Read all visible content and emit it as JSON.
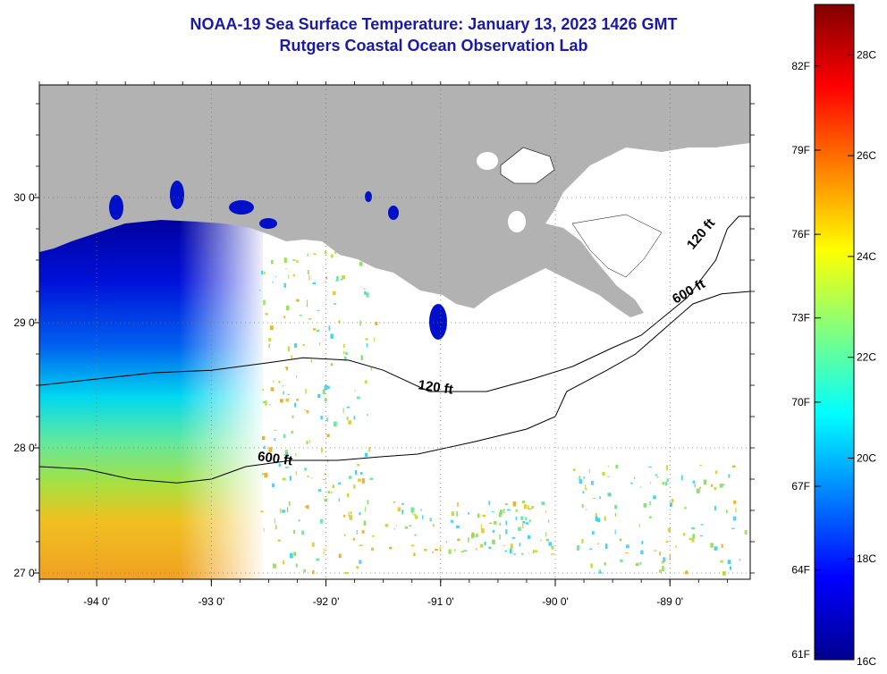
{
  "header": {
    "title": "NOAA-19 Sea Surface Temperature:  January 13, 2023 1426 GMT",
    "subtitle": "Rutgers Coastal Ocean Observation Lab"
  },
  "map": {
    "lon_range": [
      -94.5,
      -88.3
    ],
    "lat_range": [
      26.95,
      30.9
    ],
    "lon_ticks": [
      {
        "value": -94,
        "label": "-94 0'"
      },
      {
        "value": -93,
        "label": "-93 0'"
      },
      {
        "value": -92,
        "label": "-92 0'"
      },
      {
        "value": -91,
        "label": "-91 0'"
      },
      {
        "value": -90,
        "label": "-90 0'"
      },
      {
        "value": -89,
        "label": "-89 0'"
      }
    ],
    "lat_ticks": [
      {
        "value": 27,
        "label": "27 0'"
      },
      {
        "value": 28,
        "label": "28 0'"
      },
      {
        "value": 29,
        "label": "29 0'"
      },
      {
        "value": 30,
        "label": "30 0'"
      }
    ],
    "land_color": "#b2b2b2",
    "no_data_color": "#ffffff",
    "contours": [
      {
        "label": "120 ft",
        "label_at": [
          -91.2,
          28.47
        ],
        "label_rotate": 8,
        "points": [
          [
            -94.5,
            28.5
          ],
          [
            -94.0,
            28.55
          ],
          [
            -93.5,
            28.6
          ],
          [
            -93.0,
            28.62
          ],
          [
            -92.5,
            28.68
          ],
          [
            -92.2,
            28.72
          ],
          [
            -91.8,
            28.7
          ],
          [
            -91.5,
            28.62
          ],
          [
            -91.1,
            28.45
          ],
          [
            -90.6,
            28.45
          ],
          [
            -90.2,
            28.55
          ],
          [
            -89.85,
            28.65
          ],
          [
            -89.5,
            28.8
          ],
          [
            -89.25,
            28.9
          ],
          [
            -88.85,
            29.2
          ],
          [
            -88.6,
            29.5
          ],
          [
            -88.5,
            29.75
          ],
          [
            -88.4,
            29.85
          ],
          [
            -88.3,
            29.85
          ]
        ]
      },
      {
        "label": "600 ft",
        "label_at": [
          -92.6,
          27.9
        ],
        "label_rotate": 8,
        "points": [
          [
            -94.5,
            27.85
          ],
          [
            -94.1,
            27.83
          ],
          [
            -93.7,
            27.75
          ],
          [
            -93.3,
            27.72
          ],
          [
            -93.0,
            27.75
          ],
          [
            -92.7,
            27.85
          ],
          [
            -92.3,
            27.9
          ],
          [
            -91.9,
            27.9
          ],
          [
            -91.5,
            27.93
          ],
          [
            -91.2,
            27.95
          ],
          [
            -90.7,
            28.05
          ],
          [
            -90.25,
            28.15
          ],
          [
            -90.0,
            28.25
          ],
          [
            -89.9,
            28.45
          ],
          [
            -89.55,
            28.62
          ],
          [
            -89.3,
            28.75
          ],
          [
            -89.05,
            28.95
          ],
          [
            -88.8,
            29.15
          ],
          [
            -88.55,
            29.23
          ],
          [
            -88.3,
            29.25
          ]
        ]
      }
    ],
    "contour_extra_labels": [
      {
        "label": "120 ft",
        "at": [
          -88.8,
          29.58
        ],
        "rotate": -50
      },
      {
        "label": "600 ft",
        "at": [
          -88.95,
          29.15
        ],
        "rotate": -30
      }
    ]
  },
  "colorbar": {
    "min_c": 16,
    "max_c": 29,
    "gradient": [
      "#00008f",
      "#0000ff",
      "#0080ff",
      "#00ffff",
      "#80ff80",
      "#ffff00",
      "#ff8000",
      "#ff0000",
      "#800000"
    ],
    "f_labels": [
      {
        "value": "82F",
        "c": 27.78
      },
      {
        "value": "79F",
        "c": 26.11
      },
      {
        "value": "76F",
        "c": 24.44
      },
      {
        "value": "73F",
        "c": 22.78
      },
      {
        "value": "70F",
        "c": 21.11
      },
      {
        "value": "67F",
        "c": 19.44
      },
      {
        "value": "64F",
        "c": 17.78
      },
      {
        "value": "61F",
        "c": 16.11
      }
    ],
    "c_labels": [
      {
        "value": "28C",
        "c": 28
      },
      {
        "value": "26C",
        "c": 26
      },
      {
        "value": "24C",
        "c": 24
      },
      {
        "value": "22C",
        "c": 22
      },
      {
        "value": "20C",
        "c": 20
      },
      {
        "value": "18C",
        "c": 18
      },
      {
        "value": "16C",
        "c": 16
      }
    ]
  }
}
